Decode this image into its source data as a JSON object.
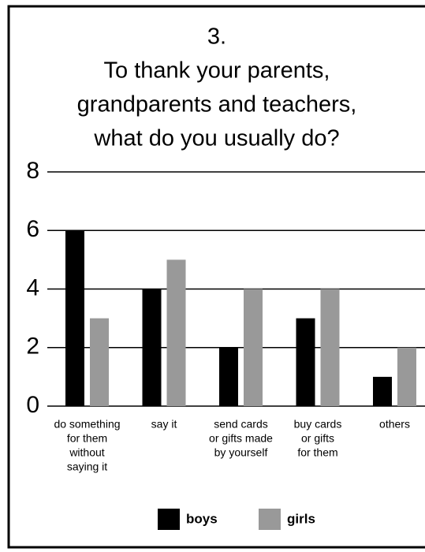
{
  "chart_data": {
    "type": "bar",
    "title": [
      "3.",
      "To thank your parents,",
      "grandparents and teachers,",
      "what do you usually do?"
    ],
    "categories": [
      [
        "do something",
        "for them",
        "without",
        "saying it"
      ],
      [
        "say it"
      ],
      [
        "send cards",
        "or gifts made",
        "by yourself"
      ],
      [
        "buy cards",
        "or gifts",
        "for them"
      ],
      [
        "others"
      ]
    ],
    "series": [
      {
        "name": "boys",
        "color": "#000000",
        "values": [
          6,
          4,
          2,
          3,
          1
        ]
      },
      {
        "name": "girls",
        "color": "#999999",
        "values": [
          3,
          5,
          4,
          4,
          2
        ]
      }
    ],
    "ylim": [
      0,
      8
    ],
    "yticks": [
      0,
      2,
      4,
      6,
      8
    ],
    "grid": true,
    "legend": "bottom"
  }
}
